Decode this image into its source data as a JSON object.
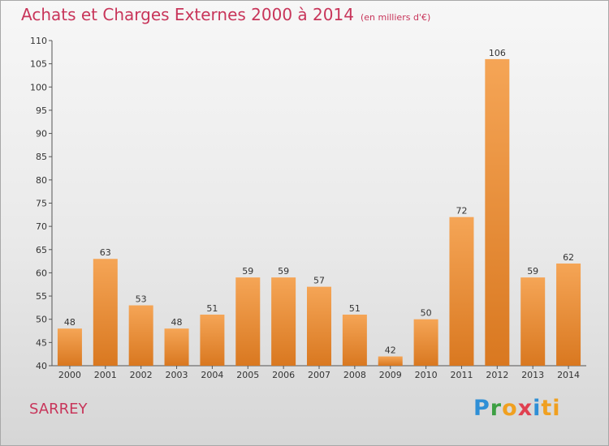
{
  "header": {
    "title": "Achats et Charges Externes 2000 à 2014",
    "subtitle": "(en milliers d'€)"
  },
  "footer": {
    "town": "SARREY",
    "logo_text": "Proxiti"
  },
  "colors": {
    "title": "#c8355a",
    "bar_light": "#f5a556",
    "bar_dark": "#d97820",
    "axis": "#555555"
  },
  "chart_data": {
    "type": "bar",
    "title": "Achats et Charges Externes 2000 à 2014",
    "subtitle": "(en milliers d'€)",
    "categories": [
      "2000",
      "2001",
      "2002",
      "2003",
      "2004",
      "2005",
      "2006",
      "2007",
      "2008",
      "2009",
      "2010",
      "2011",
      "2012",
      "2013",
      "2014"
    ],
    "values": [
      48,
      63,
      53,
      48,
      51,
      59,
      59,
      57,
      51,
      42,
      50,
      72,
      106,
      59,
      62
    ],
    "ylim": [
      40,
      110
    ],
    "yticks": [
      40,
      45,
      50,
      55,
      60,
      65,
      70,
      75,
      80,
      85,
      90,
      95,
      100,
      105,
      110
    ],
    "xlabel": "",
    "ylabel": "",
    "grid": false,
    "data_labels": true
  }
}
